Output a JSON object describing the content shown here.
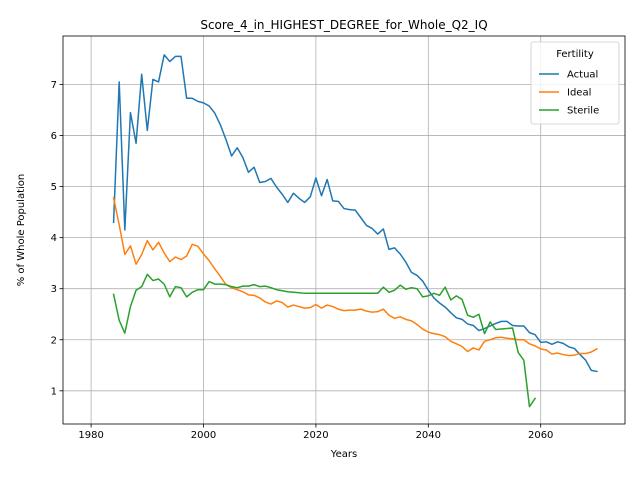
{
  "chart_data": {
    "type": "line",
    "title": "Score_4_in_HIGHEST_DEGREE_for_Whole_Q2_IQ",
    "xlabel": "Years",
    "ylabel": "% of Whole Population",
    "xlim": [
      1975,
      2075
    ],
    "ylim": [
      0.35,
      7.95
    ],
    "xticks": [
      1980,
      2000,
      2020,
      2040,
      2060
    ],
    "yticks": [
      1,
      2,
      3,
      4,
      5,
      6,
      7
    ],
    "grid": true,
    "legend": {
      "title": "Fertility",
      "position": "top-right"
    },
    "series": [
      {
        "name": "Actual",
        "color": "#1f77b4",
        "x": [
          1984,
          1985,
          1986,
          1987,
          1988,
          1989,
          1990,
          1991,
          1992,
          1993,
          1994,
          1995,
          1996,
          1997,
          1998,
          1999,
          2000,
          2001,
          2002,
          2003,
          2004,
          2005,
          2006,
          2007,
          2008,
          2009,
          2010,
          2011,
          2012,
          2013,
          2014,
          2015,
          2016,
          2017,
          2018,
          2019,
          2020,
          2021,
          2022,
          2023,
          2024,
          2025,
          2026,
          2027,
          2028,
          2029,
          2030,
          2031,
          2032,
          2033,
          2034,
          2035,
          2036,
          2037,
          2038,
          2039,
          2040,
          2041,
          2042,
          2043,
          2044,
          2045,
          2046,
          2047,
          2048,
          2049,
          2050,
          2051,
          2052,
          2053,
          2054,
          2055,
          2056,
          2057,
          2058,
          2059,
          2060,
          2061,
          2062,
          2063,
          2064,
          2065,
          2066,
          2067,
          2068,
          2069,
          2070
        ],
        "y": [
          4.3,
          7.05,
          4.15,
          6.45,
          5.85,
          7.2,
          6.1,
          7.1,
          7.05,
          7.58,
          7.45,
          7.55,
          7.55,
          6.73,
          6.73,
          6.67,
          6.64,
          6.58,
          6.44,
          6.21,
          5.92,
          5.6,
          5.76,
          5.57,
          5.28,
          5.38,
          5.08,
          5.1,
          5.16,
          4.99,
          4.85,
          4.69,
          4.87,
          4.77,
          4.69,
          4.8,
          5.17,
          4.82,
          5.14,
          4.72,
          4.71,
          4.57,
          4.55,
          4.54,
          4.39,
          4.24,
          4.18,
          4.07,
          4.17,
          3.77,
          3.8,
          3.68,
          3.52,
          3.32,
          3.26,
          3.15,
          2.97,
          2.82,
          2.72,
          2.64,
          2.53,
          2.43,
          2.4,
          2.31,
          2.28,
          2.18,
          2.22,
          2.27,
          2.32,
          2.36,
          2.36,
          2.28,
          2.27,
          2.27,
          2.14,
          2.1,
          1.95,
          1.96,
          1.91,
          1.96,
          1.93,
          1.86,
          1.83,
          1.71,
          1.6,
          1.4,
          1.38
        ]
      },
      {
        "name": "Ideal",
        "color": "#ff7f0e",
        "x": [
          1984,
          1985,
          1986,
          1987,
          1988,
          1989,
          1990,
          1991,
          1992,
          1993,
          1994,
          1995,
          1996,
          1997,
          1998,
          1999,
          2000,
          2001,
          2002,
          2003,
          2004,
          2005,
          2006,
          2007,
          2008,
          2009,
          2010,
          2011,
          2012,
          2013,
          2014,
          2015,
          2016,
          2017,
          2018,
          2019,
          2020,
          2021,
          2022,
          2023,
          2024,
          2025,
          2026,
          2027,
          2028,
          2029,
          2030,
          2031,
          2032,
          2033,
          2034,
          2035,
          2036,
          2037,
          2038,
          2039,
          2040,
          2041,
          2042,
          2043,
          2044,
          2045,
          2046,
          2047,
          2048,
          2049,
          2050,
          2051,
          2052,
          2053,
          2054,
          2055,
          2056,
          2057,
          2058,
          2059,
          2060,
          2061,
          2062,
          2063,
          2064,
          2065,
          2066,
          2067,
          2068,
          2069,
          2070
        ],
        "y": [
          4.78,
          4.25,
          3.67,
          3.84,
          3.48,
          3.67,
          3.94,
          3.76,
          3.91,
          3.7,
          3.53,
          3.62,
          3.57,
          3.64,
          3.87,
          3.83,
          3.68,
          3.55,
          3.39,
          3.24,
          3.08,
          3.02,
          2.98,
          2.94,
          2.88,
          2.87,
          2.82,
          2.74,
          2.7,
          2.76,
          2.73,
          2.64,
          2.68,
          2.65,
          2.62,
          2.63,
          2.69,
          2.62,
          2.68,
          2.65,
          2.6,
          2.57,
          2.58,
          2.58,
          2.6,
          2.56,
          2.54,
          2.55,
          2.6,
          2.48,
          2.42,
          2.45,
          2.4,
          2.37,
          2.3,
          2.21,
          2.15,
          2.12,
          2.1,
          2.06,
          1.97,
          1.92,
          1.87,
          1.77,
          1.84,
          1.8,
          1.97,
          2.0,
          2.04,
          2.05,
          2.03,
          2.02,
          2.0,
          2.0,
          1.92,
          1.88,
          1.82,
          1.8,
          1.72,
          1.74,
          1.71,
          1.69,
          1.7,
          1.73,
          1.73,
          1.76,
          1.82
        ]
      },
      {
        "name": "Sterile",
        "color": "#2ca02c",
        "x": [
          1984,
          1985,
          1986,
          1987,
          1988,
          1989,
          1990,
          1991,
          1992,
          1993,
          1994,
          1995,
          1996,
          1997,
          1998,
          1999,
          2000,
          2001,
          2002,
          2003,
          2004,
          2005,
          2006,
          2007,
          2008,
          2009,
          2010,
          2011,
          2012,
          2013,
          2014,
          2015,
          2016,
          2017,
          2018,
          2019,
          2020,
          2021,
          2022,
          2023,
          2024,
          2025,
          2026,
          2027,
          2028,
          2029,
          2030,
          2031,
          2032,
          2033,
          2034,
          2035,
          2036,
          2037,
          2038,
          2039,
          2040,
          2041,
          2042,
          2043,
          2044,
          2045,
          2046,
          2047,
          2048,
          2049,
          2050,
          2051,
          2052,
          2053,
          2054,
          2055,
          2056,
          2057,
          2058,
          2059
        ],
        "y": [
          2.89,
          2.38,
          2.13,
          2.65,
          2.97,
          3.04,
          3.28,
          3.16,
          3.19,
          3.09,
          2.84,
          3.04,
          3.02,
          2.84,
          2.93,
          2.98,
          2.98,
          3.14,
          3.09,
          3.09,
          3.08,
          3.04,
          3.02,
          3.05,
          3.05,
          3.08,
          3.04,
          3.05,
          3.02,
          2.98,
          2.96,
          2.94,
          2.93,
          2.92,
          2.91,
          2.91,
          2.91,
          2.91,
          2.91,
          2.91,
          2.91,
          2.91,
          2.91,
          2.91,
          2.91,
          2.91,
          2.91,
          2.91,
          3.03,
          2.93,
          2.97,
          3.07,
          2.99,
          3.02,
          3.0,
          2.84,
          2.86,
          2.91,
          2.87,
          3.03,
          2.78,
          2.86,
          2.79,
          2.48,
          2.44,
          2.5,
          2.12,
          2.35,
          2.2,
          2.21,
          2.22,
          2.23,
          1.75,
          1.6,
          0.69,
          0.85
        ]
      }
    ]
  }
}
